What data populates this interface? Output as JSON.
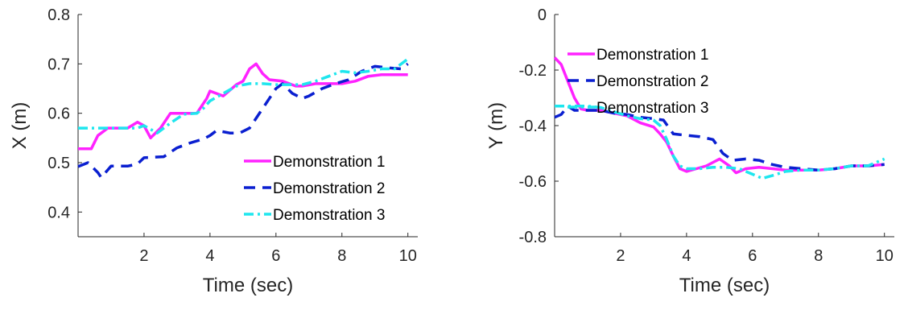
{
  "colors": {
    "demo1": "#ff22ff",
    "demo2": "#0a1fd0",
    "demo3": "#1ee6ee",
    "axis": "#262626"
  },
  "chart_data": [
    {
      "type": "line",
      "title": "",
      "xlabel": "Time (sec)",
      "ylabel": "X (m)",
      "xlim": [
        0,
        10.3
      ],
      "ylim": [
        0.35,
        0.8
      ],
      "xticks": [
        2,
        4,
        6,
        8,
        10
      ],
      "xtick_labels": [
        "2",
        "4",
        "6",
        "8",
        "10"
      ],
      "yticks": [
        0.4,
        0.5,
        0.6,
        0.7,
        0.8
      ],
      "ytick_labels": [
        "0.4",
        "0.5",
        "0.6",
        "0.7",
        "0.8"
      ],
      "grid": false,
      "legend_placement": "lower-right",
      "series": [
        {
          "name": "Demonstration 1",
          "style": "solid",
          "x": [
            0,
            0.4,
            0.6,
            0.9,
            1.2,
            1.5,
            1.8,
            2.0,
            2.2,
            2.5,
            2.8,
            3.2,
            3.6,
            3.9,
            4.0,
            4.2,
            4.4,
            4.8,
            5.0,
            5.2,
            5.4,
            5.6,
            5.8,
            6.2,
            6.6,
            6.8,
            7.2,
            7.6,
            8.0,
            8.4,
            8.8,
            9.2,
            9.6,
            10.0
          ],
          "y": [
            0.528,
            0.528,
            0.555,
            0.57,
            0.57,
            0.57,
            0.582,
            0.575,
            0.55,
            0.57,
            0.6,
            0.6,
            0.6,
            0.63,
            0.645,
            0.64,
            0.635,
            0.658,
            0.665,
            0.69,
            0.7,
            0.68,
            0.668,
            0.665,
            0.655,
            0.655,
            0.66,
            0.66,
            0.66,
            0.665,
            0.675,
            0.678,
            0.678,
            0.678
          ]
        },
        {
          "name": "Demonstration 2",
          "style": "dashed",
          "x": [
            0,
            0.3,
            0.6,
            0.7,
            1.0,
            1.5,
            1.8,
            2.0,
            2.6,
            3.0,
            3.4,
            3.8,
            4.0,
            4.2,
            4.6,
            4.9,
            5.2,
            5.5,
            5.8,
            6.0,
            6.2,
            6.5,
            6.8,
            7.0,
            7.4,
            7.8,
            8.2,
            8.6,
            9.0,
            9.4,
            9.8,
            10.0
          ],
          "y": [
            0.492,
            0.5,
            0.48,
            0.47,
            0.493,
            0.493,
            0.497,
            0.51,
            0.512,
            0.53,
            0.54,
            0.548,
            0.555,
            0.565,
            0.56,
            0.56,
            0.57,
            0.6,
            0.63,
            0.65,
            0.66,
            0.64,
            0.63,
            0.635,
            0.65,
            0.66,
            0.668,
            0.685,
            0.695,
            0.692,
            0.69,
            0.7
          ]
        },
        {
          "name": "Demonstration 3",
          "style": "dashdot",
          "x": [
            0,
            0.6,
            1.2,
            1.8,
            2.0,
            2.4,
            2.8,
            3.2,
            3.6,
            3.8,
            4.0,
            4.4,
            4.8,
            5.2,
            5.6,
            6.0,
            6.4,
            6.8,
            7.2,
            7.6,
            8.0,
            8.4,
            8.8,
            9.2,
            9.6,
            10.0
          ],
          "y": [
            0.57,
            0.57,
            0.57,
            0.57,
            0.575,
            0.56,
            0.58,
            0.598,
            0.6,
            0.61,
            0.625,
            0.64,
            0.655,
            0.66,
            0.66,
            0.658,
            0.658,
            0.658,
            0.665,
            0.675,
            0.685,
            0.682,
            0.685,
            0.69,
            0.69,
            0.71
          ]
        }
      ]
    },
    {
      "type": "line",
      "title": "",
      "xlabel": "Time (sec)",
      "ylabel": "Y (m)",
      "xlim": [
        0,
        10.3
      ],
      "ylim": [
        -0.8,
        0
      ],
      "xticks": [
        2,
        4,
        6,
        8,
        10
      ],
      "xtick_labels": [
        "2",
        "4",
        "6",
        "8",
        "10"
      ],
      "yticks": [
        -0.8,
        -0.6,
        -0.4,
        -0.2,
        0
      ],
      "ytick_labels": [
        "-0.8",
        "-0.6",
        "-0.4",
        "-0.2",
        "0"
      ],
      "grid": false,
      "legend_placement": "top-right",
      "series": [
        {
          "name": "Demonstration 1",
          "style": "solid",
          "x": [
            0,
            0.2,
            0.4,
            0.6,
            0.8,
            1.0,
            1.4,
            1.8,
            2.2,
            2.6,
            3.0,
            3.2,
            3.4,
            3.6,
            3.8,
            4.0,
            4.3,
            4.6,
            5.0,
            5.3,
            5.5,
            5.8,
            6.2,
            6.6,
            7.0,
            7.5,
            8.0,
            8.5,
            9.0,
            9.5,
            10.0
          ],
          "y": [
            -0.155,
            -0.18,
            -0.24,
            -0.3,
            -0.34,
            -0.345,
            -0.345,
            -0.355,
            -0.365,
            -0.39,
            -0.405,
            -0.43,
            -0.46,
            -0.51,
            -0.555,
            -0.565,
            -0.555,
            -0.545,
            -0.52,
            -0.545,
            -0.57,
            -0.555,
            -0.55,
            -0.555,
            -0.56,
            -0.56,
            -0.56,
            -0.555,
            -0.545,
            -0.545,
            -0.54
          ]
        },
        {
          "name": "Demonstration 2",
          "style": "dashed",
          "x": [
            0,
            0.2,
            0.4,
            0.6,
            1.0,
            1.4,
            1.8,
            2.2,
            2.6,
            3.0,
            3.3,
            3.6,
            4.0,
            4.4,
            4.8,
            5.1,
            5.4,
            5.8,
            6.2,
            6.6,
            7.0,
            7.5,
            8.0,
            8.5,
            9.0,
            9.5,
            10.0
          ],
          "y": [
            -0.37,
            -0.36,
            -0.33,
            -0.345,
            -0.345,
            -0.345,
            -0.355,
            -0.36,
            -0.37,
            -0.375,
            -0.38,
            -0.43,
            -0.435,
            -0.44,
            -0.45,
            -0.5,
            -0.525,
            -0.52,
            -0.525,
            -0.54,
            -0.55,
            -0.555,
            -0.56,
            -0.555,
            -0.545,
            -0.545,
            -0.54
          ]
        },
        {
          "name": "Demonstration 3",
          "style": "dashdot",
          "x": [
            0,
            0.5,
            1.0,
            1.4,
            1.8,
            2.2,
            2.6,
            3.0,
            3.2,
            3.4,
            3.6,
            3.8,
            4.0,
            4.4,
            4.8,
            5.2,
            5.6,
            6.0,
            6.3,
            6.6,
            7.0,
            7.5,
            8.0,
            8.5,
            9.0,
            9.5,
            10.0
          ],
          "y": [
            -0.33,
            -0.33,
            -0.33,
            -0.335,
            -0.35,
            -0.365,
            -0.375,
            -0.38,
            -0.4,
            -0.45,
            -0.51,
            -0.545,
            -0.555,
            -0.555,
            -0.55,
            -0.55,
            -0.555,
            -0.575,
            -0.59,
            -0.58,
            -0.565,
            -0.56,
            -0.56,
            -0.555,
            -0.545,
            -0.545,
            -0.52
          ]
        }
      ]
    }
  ]
}
